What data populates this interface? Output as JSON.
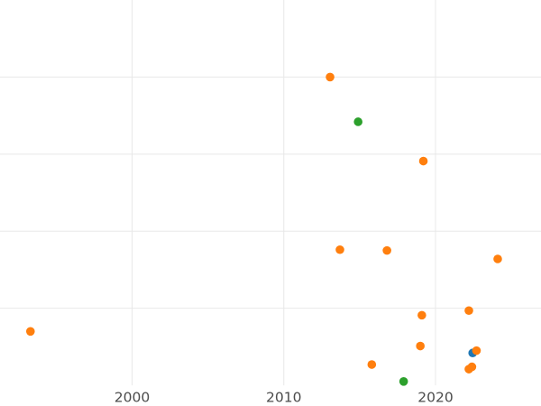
{
  "figure": {
    "background_color": "#ffffff",
    "gridline_color": "#e8e8e8",
    "tick_label_color": "#4c4c4c"
  },
  "chart_data": {
    "type": "scatter",
    "title": "",
    "xlabel": "",
    "ylabel": "",
    "x_ticks": [
      {
        "value": 2000,
        "label": "2000"
      },
      {
        "value": 2010,
        "label": "2010"
      },
      {
        "value": 2020,
        "label": "2020"
      }
    ],
    "x_range": [
      1991.3,
      2027.0
    ],
    "y_range": [
      0,
      5
    ],
    "y_gridlines": [
      1,
      2,
      3,
      4
    ],
    "y_tick_labels_visible": false,
    "grid": true,
    "legend": false,
    "series": [
      {
        "name": "blue-series",
        "color": "#1f77b4",
        "points": [
          {
            "x": 2022.45,
            "y": 0.42
          }
        ]
      },
      {
        "name": "green-series",
        "color": "#2ca02c",
        "points": [
          {
            "x": 2014.9,
            "y": 3.42
          },
          {
            "x": 2017.9,
            "y": 0.05
          }
        ]
      },
      {
        "name": "orange-series",
        "color": "#ff7f0e",
        "points": [
          {
            "x": 1993.3,
            "y": 0.7
          },
          {
            "x": 2013.05,
            "y": 4.0
          },
          {
            "x": 2013.7,
            "y": 1.76
          },
          {
            "x": 2015.8,
            "y": 0.27
          },
          {
            "x": 2016.8,
            "y": 1.75
          },
          {
            "x": 2019.0,
            "y": 0.51
          },
          {
            "x": 2019.1,
            "y": 0.91
          },
          {
            "x": 2019.2,
            "y": 2.91
          },
          {
            "x": 2022.2,
            "y": 0.97
          },
          {
            "x": 2022.2,
            "y": 0.21
          },
          {
            "x": 2022.4,
            "y": 0.24
          },
          {
            "x": 2022.7,
            "y": 0.45
          },
          {
            "x": 2024.1,
            "y": 1.64
          }
        ]
      }
    ]
  }
}
